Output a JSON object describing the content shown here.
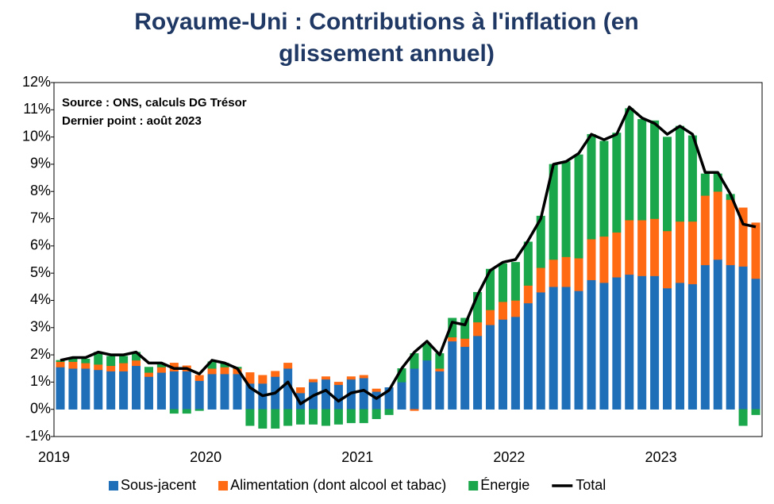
{
  "chart_data": {
    "type": "bar",
    "stacked": true,
    "title": "Royaume-Uni  : Contributions à l'inflation (en glissement annuel)",
    "annotations": [
      "Source : ONS, calculs DG Trésor",
      "Dernier point : août 2023"
    ],
    "categories": [
      "2019",
      null,
      null,
      null,
      null,
      null,
      null,
      null,
      null,
      null,
      null,
      null,
      "2020",
      null,
      null,
      null,
      null,
      null,
      null,
      null,
      null,
      null,
      null,
      null,
      "2021",
      null,
      null,
      null,
      null,
      null,
      null,
      null,
      null,
      null,
      null,
      null,
      "2022",
      null,
      null,
      null,
      null,
      null,
      null,
      null,
      null,
      null,
      null,
      null,
      "2023",
      null,
      null,
      null,
      null,
      null,
      null,
      null
    ],
    "ylim": [
      -1,
      12
    ],
    "yticks": [
      {
        "value": -1,
        "label": "-1%"
      },
      {
        "value": 0,
        "label": "0%"
      },
      {
        "value": 1,
        "label": "1%"
      },
      {
        "value": 2,
        "label": "2%"
      },
      {
        "value": 3,
        "label": "3%"
      },
      {
        "value": 4,
        "label": "4%"
      },
      {
        "value": 5,
        "label": "5%"
      },
      {
        "value": 6,
        "label": "6%"
      },
      {
        "value": 7,
        "label": "7%"
      },
      {
        "value": 8,
        "label": "8%"
      },
      {
        "value": 9,
        "label": "9%"
      },
      {
        "value": 10,
        "label": "10%"
      },
      {
        "value": 11,
        "label": "11%"
      },
      {
        "value": 12,
        "label": "12%"
      }
    ],
    "legend": "bottom",
    "series": [
      {
        "name": "Sous-jacent",
        "type": "bar",
        "color": "#1f6fb8",
        "values": [
          1.55,
          1.5,
          1.5,
          1.45,
          1.4,
          1.4,
          1.6,
          1.2,
          1.35,
          1.4,
          1.4,
          1.05,
          1.3,
          1.3,
          1.3,
          0.95,
          0.95,
          1.2,
          1.5,
          0.6,
          1.0,
          1.1,
          0.9,
          1.1,
          1.15,
          0.65,
          0.8,
          1.0,
          1.5,
          1.8,
          1.4,
          2.5,
          2.3,
          2.7,
          3.1,
          3.3,
          3.4,
          3.9,
          4.3,
          4.5,
          4.5,
          4.35,
          4.75,
          4.65,
          4.85,
          4.95,
          4.9,
          4.9,
          4.45,
          4.65,
          4.6,
          5.3,
          5.5,
          5.3,
          5.25,
          4.8
        ]
      },
      {
        "name": "Alimentation (dont alcool et tabac)",
        "type": "bar",
        "color": "#ff6a13",
        "values": [
          0.2,
          0.25,
          0.2,
          0.2,
          0.2,
          0.3,
          0.2,
          0.15,
          0.2,
          0.3,
          0.2,
          0.2,
          0.2,
          0.25,
          0.2,
          0.4,
          0.3,
          0.2,
          0.2,
          0.2,
          0.1,
          0.1,
          0.1,
          0.1,
          0.1,
          0.1,
          0.0,
          0.0,
          -0.05,
          0.0,
          0.1,
          0.15,
          0.3,
          0.5,
          0.55,
          0.65,
          0.6,
          0.65,
          0.9,
          1.0,
          1.1,
          1.2,
          1.5,
          1.7,
          1.65,
          2.0,
          2.05,
          2.1,
          2.1,
          2.25,
          2.3,
          2.55,
          2.5,
          2.4,
          2.15,
          2.05
        ]
      },
      {
        "name": "Énergie",
        "type": "bar",
        "color": "#1aa64a",
        "values": [
          0.05,
          0.1,
          0.15,
          0.45,
          0.35,
          0.25,
          0.3,
          0.2,
          0.1,
          -0.15,
          -0.15,
          -0.05,
          0.25,
          0.15,
          0.05,
          -0.6,
          -0.7,
          -0.7,
          -0.6,
          -0.55,
          -0.55,
          -0.6,
          -0.55,
          -0.5,
          -0.5,
          -0.35,
          -0.2,
          0.5,
          0.55,
          0.6,
          0.55,
          0.7,
          0.75,
          1.1,
          1.5,
          1.4,
          1.4,
          1.6,
          1.9,
          3.5,
          3.5,
          3.8,
          3.85,
          3.5,
          3.65,
          4.1,
          3.7,
          3.6,
          3.45,
          3.5,
          3.15,
          0.8,
          0.65,
          0.2,
          -0.6,
          -0.2
        ]
      },
      {
        "name": "Total",
        "type": "line",
        "color": "#000000",
        "values": [
          1.8,
          1.9,
          1.9,
          2.1,
          2.0,
          2.0,
          2.1,
          1.7,
          1.7,
          1.5,
          1.5,
          1.3,
          1.8,
          1.7,
          1.5,
          0.8,
          0.5,
          0.6,
          1.0,
          0.2,
          0.5,
          0.7,
          0.3,
          0.6,
          0.7,
          0.4,
          0.7,
          1.5,
          2.1,
          2.5,
          2.0,
          3.2,
          3.1,
          4.2,
          5.1,
          5.4,
          5.5,
          6.2,
          7.0,
          9.0,
          9.1,
          9.4,
          10.1,
          9.9,
          10.1,
          11.1,
          10.7,
          10.5,
          10.1,
          10.4,
          10.1,
          8.7,
          8.7,
          7.9,
          6.8,
          6.7
        ]
      }
    ]
  }
}
